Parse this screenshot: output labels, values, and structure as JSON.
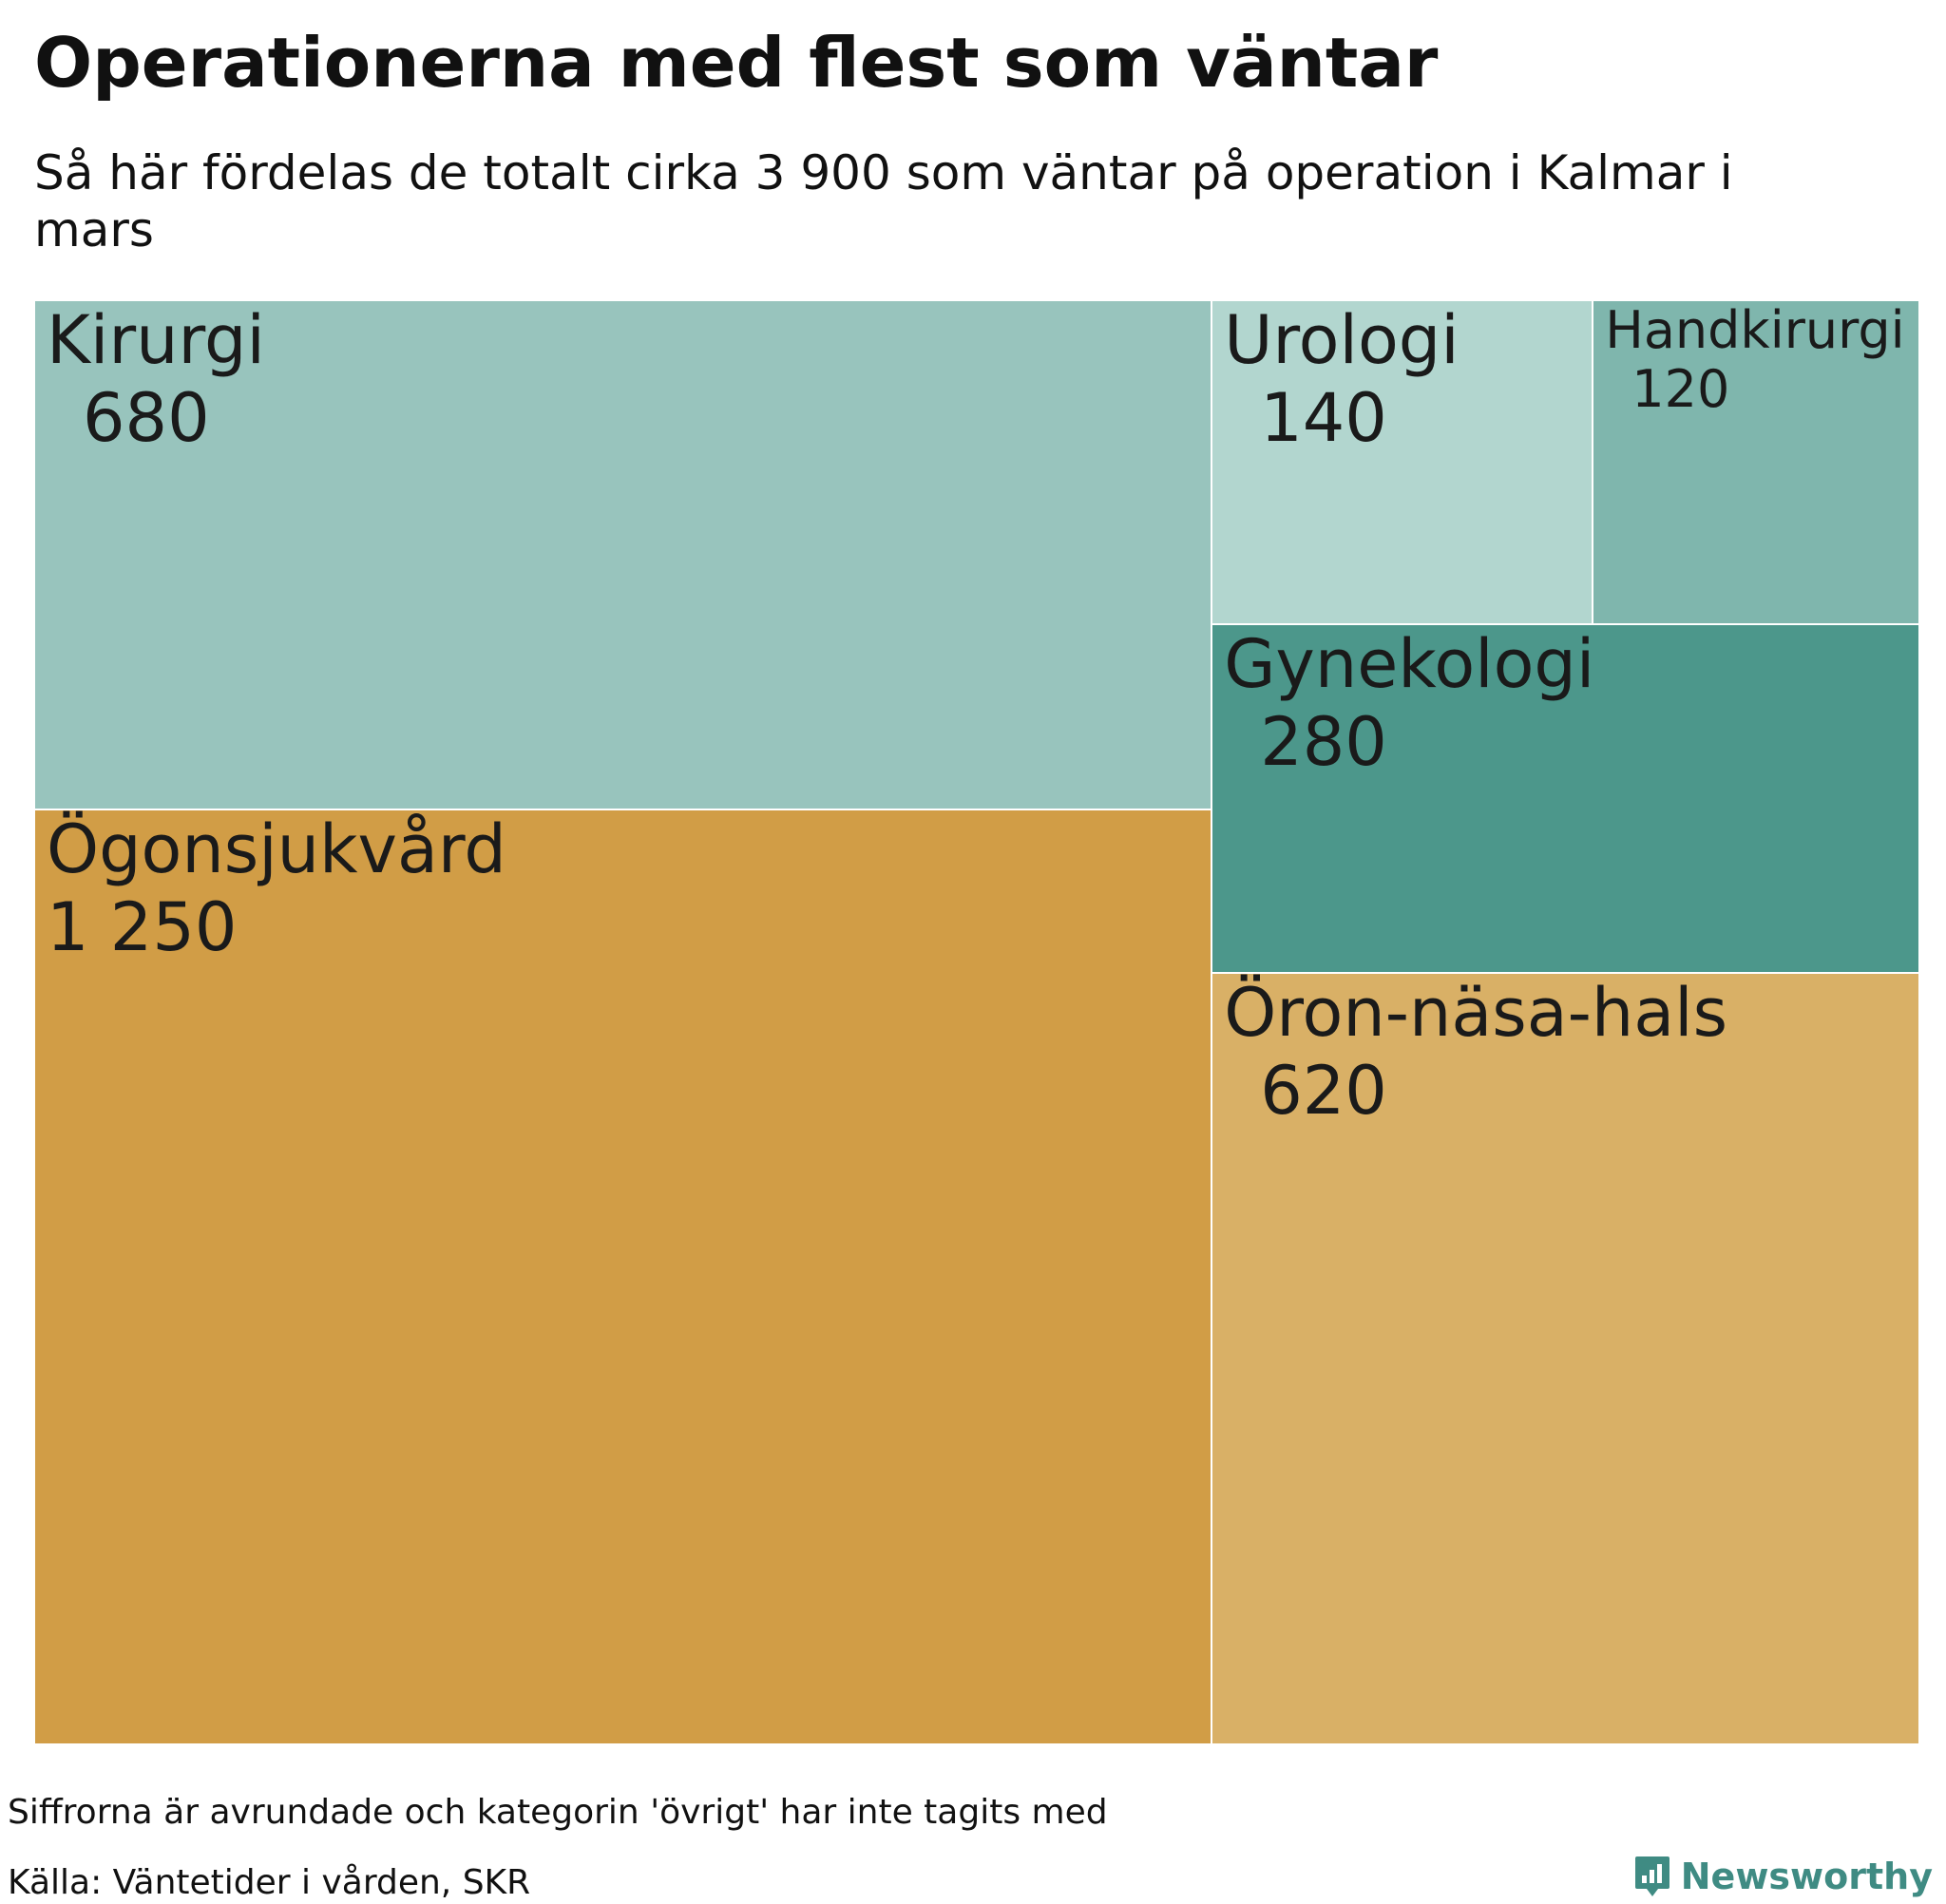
{
  "title": "Operationerna med flest som väntar",
  "subtitle": "Så här fördelas de totalt cirka 3 900 som väntar på operation i Kalmar i mars",
  "note": "Siffrorna är avrundade och kategorin 'övrigt' har inte tagits med",
  "source": "Källa: Väntetider i vården, SKR",
  "brand": {
    "name": "Newsworthy",
    "icon": "newsworthy-logo-icon"
  },
  "chart_data": {
    "type": "treemap",
    "unit": "antal som väntar",
    "items": [
      {
        "name": "Ögonsjukvård",
        "value": 1250,
        "value_label": "1 250",
        "color": "#d19d46"
      },
      {
        "name": "Kirurgi",
        "value": 680,
        "value_label": "680",
        "color": "#98c4bd"
      },
      {
        "name": "Öron-näsa-hals",
        "value": 620,
        "value_label": "620",
        "color": "#d9b066"
      },
      {
        "name": "Gynekologi",
        "value": 280,
        "value_label": "280",
        "color": "#4c978b"
      },
      {
        "name": "Urologi",
        "value": 140,
        "value_label": "140",
        "color": "#b2d6cf"
      },
      {
        "name": "Handkirurgi",
        "value": 120,
        "value_label": "120",
        "color": "#7fb6ad"
      }
    ]
  }
}
